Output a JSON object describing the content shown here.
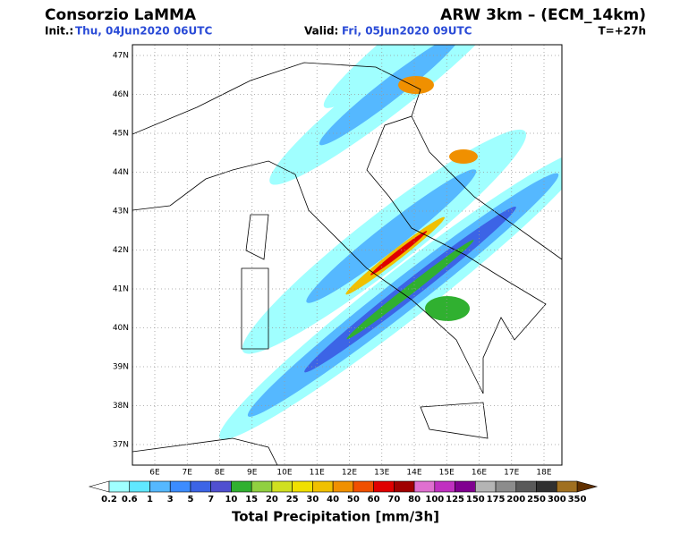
{
  "header": {
    "title": "Consorzio LaMMA",
    "model": "ARW 3km – (ECM_14km)",
    "init_label": "Init.:",
    "init": "Thu, 04Jun2020 06UTC",
    "valid_label": "Valid:",
    "valid": "Fri, 05Jun2020 09UTC",
    "lead": "T=+27h"
  },
  "map": {
    "lat_labels": [
      "47N",
      "46N",
      "45N",
      "44N",
      "43N",
      "42N",
      "41N",
      "40N",
      "39N",
      "38N",
      "37N"
    ],
    "lon_labels": [
      "6E",
      "7E",
      "8E",
      "9E",
      "10E",
      "11E",
      "12E",
      "13E",
      "14E",
      "15E",
      "16E",
      "17E",
      "18E"
    ]
  },
  "colorbar": {
    "labels": [
      "0.2",
      "0.6",
      "1",
      "3",
      "5",
      "7",
      "10",
      "15",
      "20",
      "25",
      "30",
      "40",
      "50",
      "60",
      "70",
      "80",
      "100",
      "125",
      "150",
      "175",
      "200",
      "250",
      "300",
      "350"
    ],
    "colors": [
      "#ffffff",
      "#a0ffff",
      "#60e8ff",
      "#55b8ff",
      "#3c8cff",
      "#3c64e6",
      "#5050d0",
      "#30b030",
      "#90d040",
      "#d0e020",
      "#f0e000",
      "#f0c000",
      "#f09000",
      "#f05000",
      "#e00000",
      "#a00000",
      "#e070d0",
      "#c030c0",
      "#800090",
      "#b4b4b4",
      "#8c8c8c",
      "#5a5a5a",
      "#303030",
      "#a07020",
      "#603000"
    ],
    "title": "Total Precipitation [mm/3h]"
  }
}
